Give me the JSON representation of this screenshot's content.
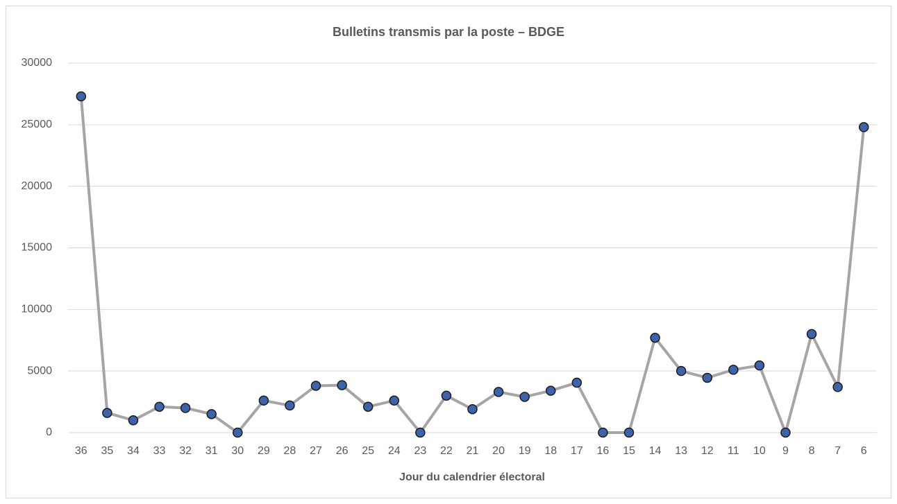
{
  "chart_data": {
    "type": "line",
    "title": "Bulletins transmis par la poste – BDGE",
    "x_label": "Jour du calendrier électoral",
    "categories": [
      "36",
      "35",
      "34",
      "33",
      "32",
      "31",
      "30",
      "29",
      "28",
      "27",
      "26",
      "25",
      "24",
      "23",
      "22",
      "21",
      "20",
      "19",
      "18",
      "17",
      "16",
      "15",
      "14",
      "13",
      "12",
      "11",
      "10",
      "9",
      "8",
      "7",
      "6"
    ],
    "series": [
      {
        "name": "Bulletins",
        "color": "#a5a5a5",
        "marker_color": "#3e63a8",
        "values": [
          27300,
          1600,
          1000,
          2100,
          2000,
          1500,
          0,
          2600,
          2200,
          3800,
          3850,
          2100,
          2600,
          0,
          3000,
          1900,
          3300,
          2900,
          3400,
          4050,
          0,
          0,
          7700,
          5000,
          4450,
          5100,
          5450,
          0,
          8000,
          3700,
          24800
        ]
      }
    ],
    "ylim": [
      0,
      30000
    ],
    "yticks": [
      0,
      5000,
      10000,
      15000,
      20000,
      25000,
      30000
    ],
    "grid": true
  }
}
